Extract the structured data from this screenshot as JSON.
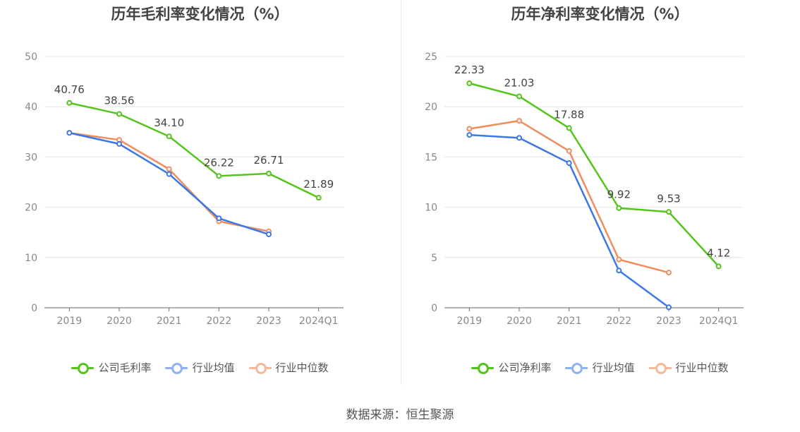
{
  "source_text": "数据来源：恒生聚源",
  "colors": {
    "company": "#52c41a",
    "avg": "#3b78e7",
    "median": "#f08c5e",
    "grid": "#e6e6e6",
    "axis": "#666666"
  },
  "chart_data": [
    {
      "type": "line",
      "title": "历年毛利率变化情况（%）",
      "categories": [
        "2019",
        "2020",
        "2021",
        "2022",
        "2023",
        "2024Q1"
      ],
      "ylim": [
        0,
        50
      ],
      "yticks": [
        0,
        10,
        20,
        30,
        40,
        50
      ],
      "series": [
        {
          "name": "公司毛利率",
          "values": [
            40.76,
            38.56,
            34.1,
            26.22,
            26.71,
            21.89
          ],
          "labels": [
            "40.76",
            "38.56",
            "34.10",
            "26.22",
            "26.71",
            "21.89"
          ]
        },
        {
          "name": "行业均值",
          "values": [
            34.8,
            32.6,
            26.6,
            17.8,
            14.6,
            null
          ]
        },
        {
          "name": "行业中位数",
          "values": [
            34.8,
            33.4,
            27.6,
            17.2,
            15.2,
            null
          ]
        }
      ],
      "legend": "bottom"
    },
    {
      "type": "line",
      "title": "历年净利率变化情况（%）",
      "categories": [
        "2019",
        "2020",
        "2021",
        "2022",
        "2023",
        "2024Q1"
      ],
      "ylim": [
        0,
        25
      ],
      "yticks": [
        0,
        5,
        10,
        15,
        20,
        25
      ],
      "series": [
        {
          "name": "公司净利率",
          "values": [
            22.33,
            21.03,
            17.88,
            9.92,
            9.53,
            4.12
          ],
          "labels": [
            "22.33",
            "21.03",
            "17.88",
            "9.92",
            "9.53",
            "4.12"
          ]
        },
        {
          "name": "行业均值",
          "values": [
            17.2,
            16.9,
            14.4,
            3.7,
            0.05,
            null
          ]
        },
        {
          "name": "行业中位数",
          "values": [
            17.8,
            18.6,
            15.6,
            4.8,
            3.5,
            null
          ]
        }
      ],
      "legend": "bottom"
    }
  ]
}
